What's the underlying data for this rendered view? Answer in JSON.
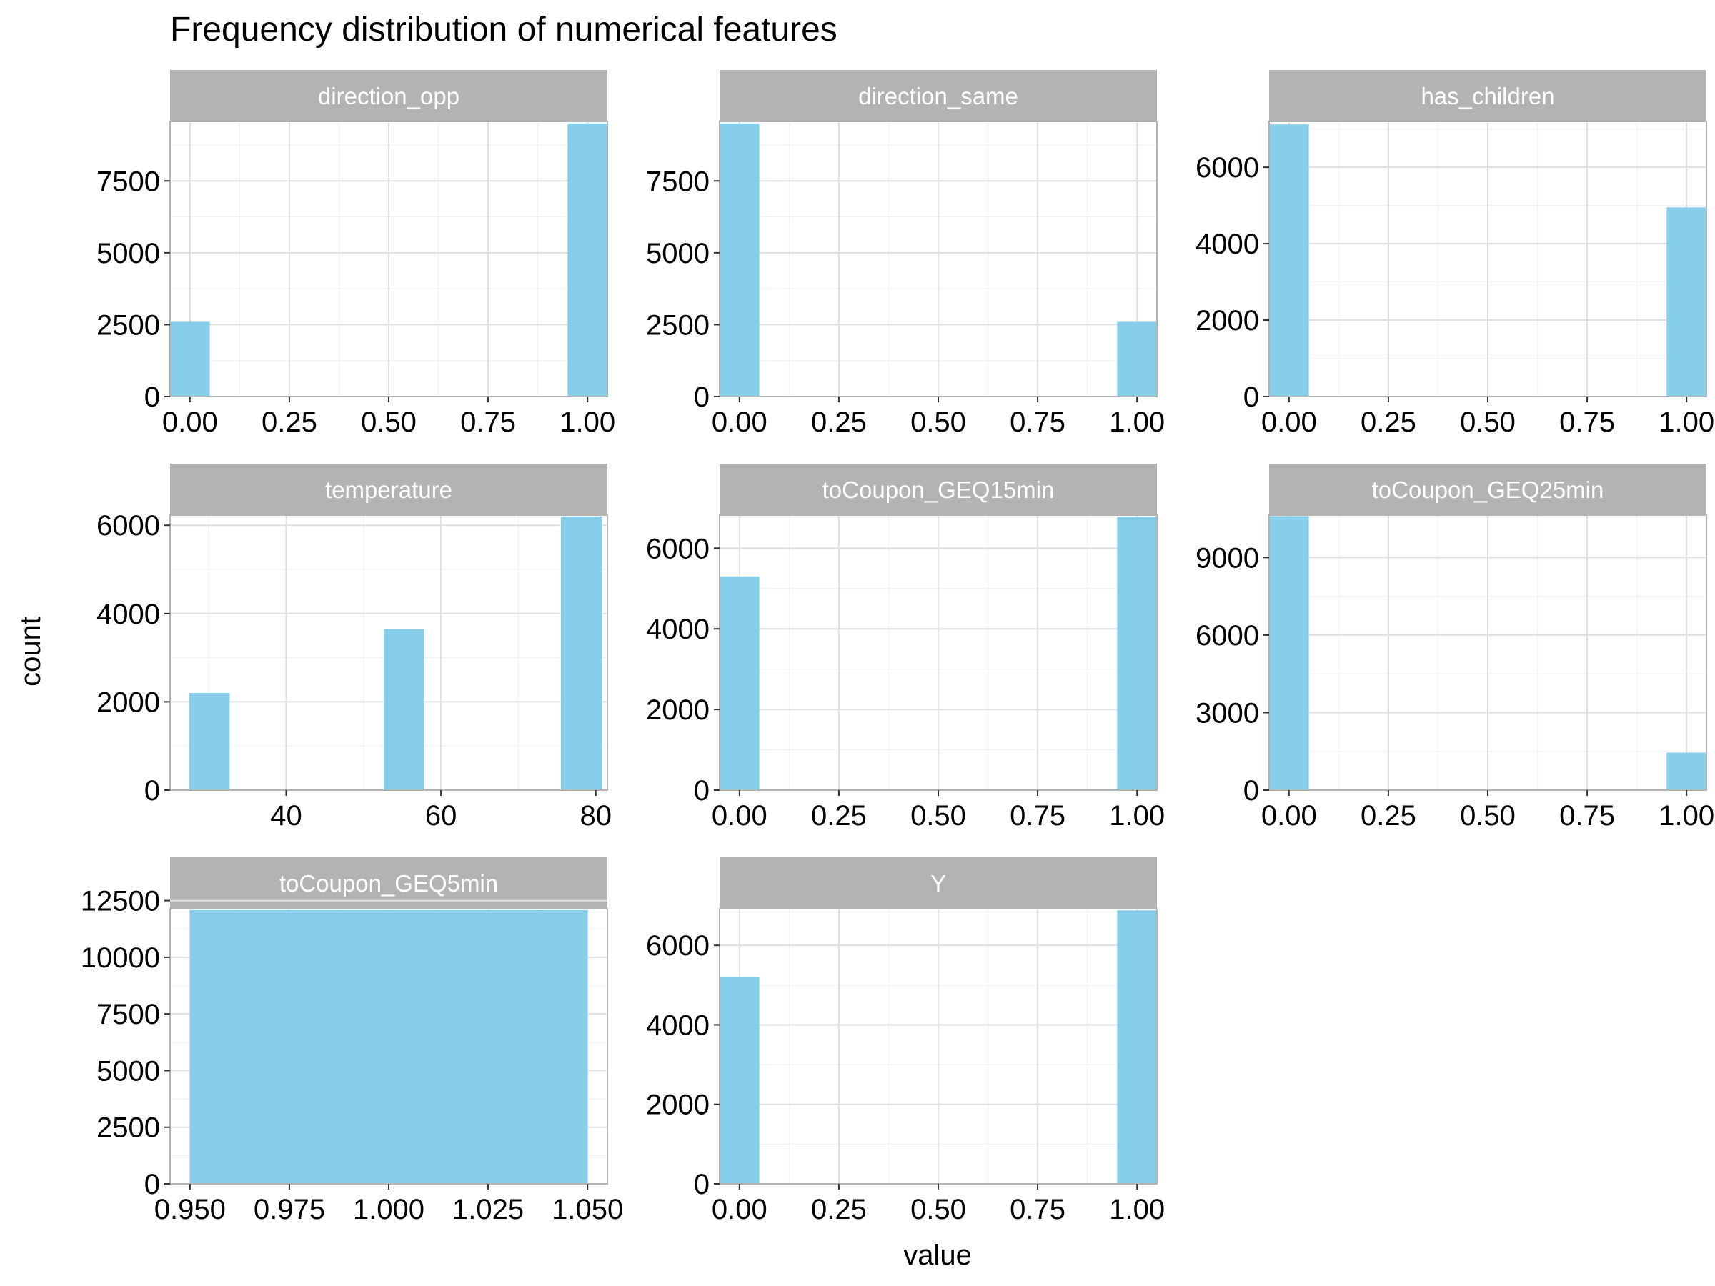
{
  "chart_data": {
    "type": "bar",
    "title": "Frequency distribution of numerical features",
    "xlabel": "value",
    "ylabel": "count",
    "bar_color": "#87ceeb",
    "strip_color": "#b3b3b3",
    "grid": true,
    "panels": [
      {
        "name": "direction_opp",
        "xlim": [
          -0.05,
          1.05
        ],
        "ylim": [
          0,
          9570
        ],
        "xticks": [
          "0.00",
          "0.25",
          "0.50",
          "0.75",
          "1.00"
        ],
        "xtick_values": [
          0,
          0.25,
          0.5,
          0.75,
          1
        ],
        "yticks": [
          "0",
          "2500",
          "5000",
          "7500"
        ],
        "ytick_values": [
          0,
          2500,
          5000,
          7500
        ],
        "bars": [
          {
            "x0": -0.05,
            "x1": 0.05,
            "count": 2600
          },
          {
            "x0": 0.95,
            "x1": 1.05,
            "count": 9500
          }
        ]
      },
      {
        "name": "direction_same",
        "xlim": [
          -0.05,
          1.05
        ],
        "ylim": [
          0,
          9570
        ],
        "xticks": [
          "0.00",
          "0.25",
          "0.50",
          "0.75",
          "1.00"
        ],
        "xtick_values": [
          0,
          0.25,
          0.5,
          0.75,
          1
        ],
        "yticks": [
          "0",
          "2500",
          "5000",
          "7500"
        ],
        "ytick_values": [
          0,
          2500,
          5000,
          7500
        ],
        "bars": [
          {
            "x0": -0.05,
            "x1": 0.05,
            "count": 9500
          },
          {
            "x0": 0.95,
            "x1": 1.05,
            "count": 2600
          }
        ]
      },
      {
        "name": "has_children",
        "xlim": [
          -0.05,
          1.05
        ],
        "ylim": [
          0,
          7200
        ],
        "xticks": [
          "0.00",
          "0.25",
          "0.50",
          "0.75",
          "1.00"
        ],
        "xtick_values": [
          0,
          0.25,
          0.5,
          0.75,
          1
        ],
        "yticks": [
          "0",
          "2000",
          "4000",
          "6000"
        ],
        "ytick_values": [
          0,
          2000,
          4000,
          6000
        ],
        "bars": [
          {
            "x0": -0.05,
            "x1": 0.05,
            "count": 7120
          },
          {
            "x0": 0.95,
            "x1": 1.05,
            "count": 4950
          }
        ]
      },
      {
        "name": "temperature",
        "xlim": [
          25,
          81.5
        ],
        "ylim": [
          0,
          6230
        ],
        "xticks": [
          "40",
          "60",
          "80"
        ],
        "xtick_values": [
          40,
          60,
          80
        ],
        "yticks": [
          "0",
          "2000",
          "4000",
          "6000"
        ],
        "ytick_values": [
          0,
          2000,
          4000,
          6000
        ],
        "bars": [
          {
            "x0": 27.5,
            "x1": 32.7,
            "count": 2200
          },
          {
            "x0": 52.6,
            "x1": 57.8,
            "count": 3650
          },
          {
            "x0": 75.5,
            "x1": 80.8,
            "count": 6200
          }
        ]
      },
      {
        "name": "toCoupon_GEQ15min",
        "xlim": [
          -0.05,
          1.05
        ],
        "ylim": [
          0,
          6820
        ],
        "xticks": [
          "0.00",
          "0.25",
          "0.50",
          "0.75",
          "1.00"
        ],
        "xtick_values": [
          0,
          0.25,
          0.5,
          0.75,
          1
        ],
        "yticks": [
          "0",
          "2000",
          "4000",
          "6000"
        ],
        "ytick_values": [
          0,
          2000,
          4000,
          6000
        ],
        "bars": [
          {
            "x0": -0.05,
            "x1": 0.05,
            "count": 5300
          },
          {
            "x0": 0.95,
            "x1": 1.05,
            "count": 6780
          }
        ]
      },
      {
        "name": "toCoupon_GEQ25min",
        "xlim": [
          -0.05,
          1.05
        ],
        "ylim": [
          0,
          10640
        ],
        "xticks": [
          "0.00",
          "0.25",
          "0.50",
          "0.75",
          "1.00"
        ],
        "xtick_values": [
          0,
          0.25,
          0.5,
          0.75,
          1
        ],
        "yticks": [
          "0",
          "3000",
          "6000",
          "9000"
        ],
        "ytick_values": [
          0,
          3000,
          6000,
          9000
        ],
        "bars": [
          {
            "x0": -0.05,
            "x1": 0.05,
            "count": 10600
          },
          {
            "x0": 0.95,
            "x1": 1.05,
            "count": 1450
          }
        ]
      },
      {
        "name": "toCoupon_GEQ5min",
        "xlim": [
          0.945,
          1.055
        ],
        "ylim": [
          0,
          12140
        ],
        "xticks": [
          "0.950",
          "0.975",
          "1.000",
          "1.025",
          "1.050"
        ],
        "xtick_values": [
          0.95,
          0.975,
          1,
          1.025,
          1.05
        ],
        "yticks": [
          "0",
          "2500",
          "5000",
          "7500",
          "10000",
          "12500"
        ],
        "ytick_values": [
          0,
          2500,
          5000,
          7500,
          10000,
          12500
        ],
        "bars": [
          {
            "x0": 0.95,
            "x1": 1.05,
            "count": 12080
          }
        ]
      },
      {
        "name": "Y",
        "xlim": [
          -0.05,
          1.05
        ],
        "ylim": [
          0,
          6920
        ],
        "xticks": [
          "0.00",
          "0.25",
          "0.50",
          "0.75",
          "1.00"
        ],
        "xtick_values": [
          0,
          0.25,
          0.5,
          0.75,
          1
        ],
        "yticks": [
          "0",
          "2000",
          "4000",
          "6000"
        ],
        "ytick_values": [
          0,
          2000,
          4000,
          6000
        ],
        "bars": [
          {
            "x0": -0.05,
            "x1": 0.05,
            "count": 5200
          },
          {
            "x0": 0.95,
            "x1": 1.05,
            "count": 6880
          }
        ]
      }
    ]
  }
}
